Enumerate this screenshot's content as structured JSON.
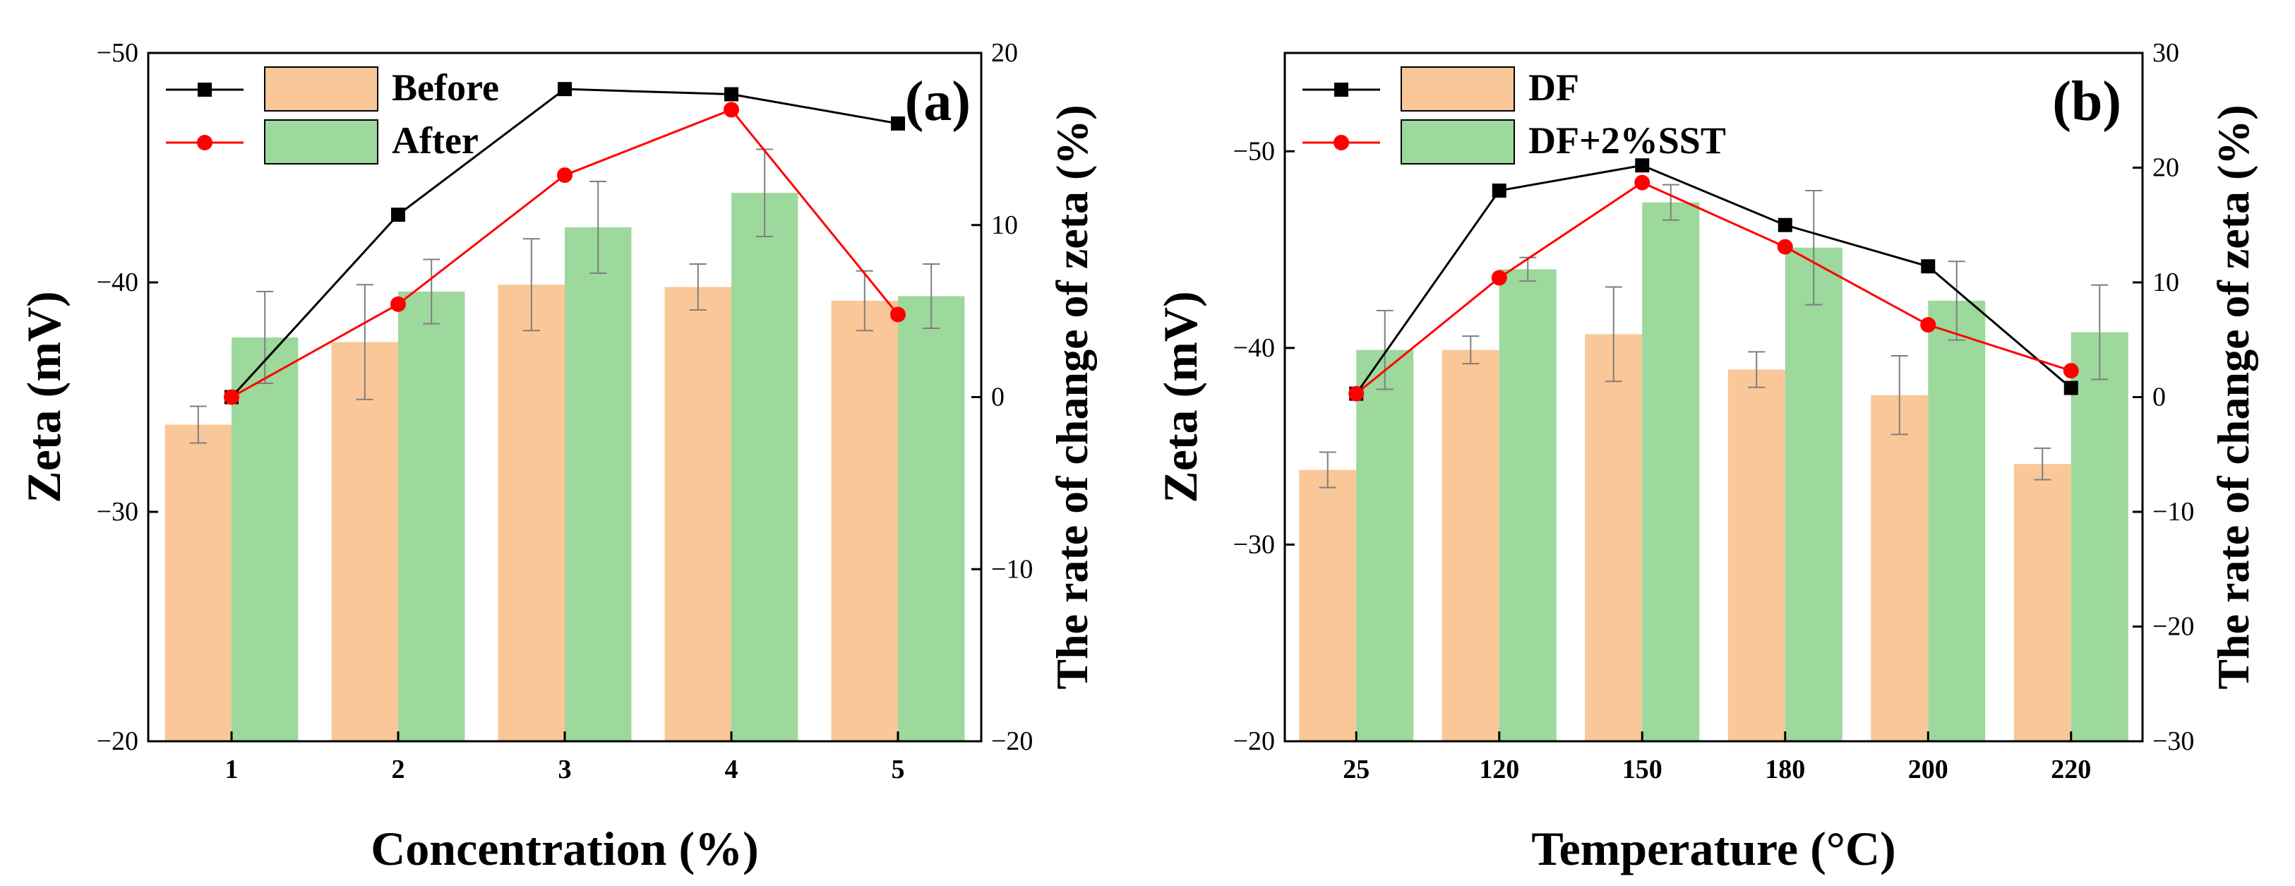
{
  "colors": {
    "bar_before": "#f9c798",
    "bar_after": "#9dd89c",
    "line_black": "#000000",
    "line_red": "#ff0000",
    "error_bar": "#7f7f7f"
  },
  "chart_data": [
    {
      "type": "bar",
      "panel_label": "(a)",
      "xlabel": "Concentration (%)",
      "ylabel": "Zeta (mV)",
      "y2label": "The rate of change of zeta (%)",
      "categories": [
        "1",
        "2",
        "3",
        "4",
        "5"
      ],
      "ylim": [
        -20,
        -50
      ],
      "yticks": [
        -20,
        -30,
        -40,
        -50
      ],
      "ytick_labels": [
        "−20",
        "−30",
        "−40",
        "−50"
      ],
      "y2lim": [
        -20,
        20
      ],
      "y2ticks": [
        -20,
        -10,
        0,
        10,
        20
      ],
      "y2tick_labels": [
        "−20",
        "−10",
        "0",
        "10",
        "20"
      ],
      "legend_position": "top-left",
      "bar_series": [
        {
          "name": "Before",
          "values": [
            -33.8,
            -37.4,
            -39.9,
            -39.8,
            -39.2
          ],
          "errors": [
            0.8,
            2.5,
            2.0,
            1.0,
            1.3
          ]
        },
        {
          "name": "After",
          "values": [
            -37.6,
            -39.6,
            -42.4,
            -43.9,
            -39.4
          ],
          "errors": [
            2.0,
            1.4,
            2.0,
            1.9,
            1.4
          ]
        }
      ],
      "line_series": [
        {
          "values": [
            0,
            10.6,
            17.9,
            17.6,
            15.9
          ]
        },
        {
          "values": [
            0,
            5.4,
            12.9,
            16.7,
            4.8
          ]
        }
      ]
    },
    {
      "type": "bar",
      "panel_label": "(b)",
      "xlabel": "Temperature (°C)",
      "ylabel": "Zeta (mV)",
      "y2label": "The rate of change of zeta (%)",
      "categories": [
        "25",
        "120",
        "150",
        "180",
        "200",
        "220"
      ],
      "ylim": [
        -20,
        -55
      ],
      "yticks": [
        -20,
        -30,
        -40,
        -50
      ],
      "ytick_labels": [
        "−20",
        "−30",
        "−40",
        "−50"
      ],
      "y2lim": [
        -30,
        30
      ],
      "y2ticks": [
        -30,
        -20,
        -10,
        0,
        10,
        20,
        30
      ],
      "y2tick_labels": [
        "−30",
        "−20",
        "−10",
        "0",
        "10",
        "20",
        "30"
      ],
      "legend_position": "top-left",
      "bar_series": [
        {
          "name": "DF",
          "values": [
            -33.8,
            -39.9,
            -40.7,
            -38.9,
            -37.6,
            -34.1
          ],
          "errors": [
            0.9,
            0.7,
            2.4,
            0.9,
            2.0,
            0.8
          ]
        },
        {
          "name": "DF+2%SST",
          "values": [
            -39.9,
            -44.0,
            -47.4,
            -45.1,
            -42.4,
            -40.8
          ],
          "errors": [
            2.0,
            0.6,
            0.9,
            2.9,
            2.0,
            2.4
          ]
        }
      ],
      "line_series": [
        {
          "values": [
            0.3,
            18.0,
            20.2,
            15.0,
            11.4,
            0.8
          ]
        },
        {
          "values": [
            0.3,
            10.4,
            18.7,
            13.1,
            6.3,
            2.3
          ]
        }
      ]
    }
  ]
}
